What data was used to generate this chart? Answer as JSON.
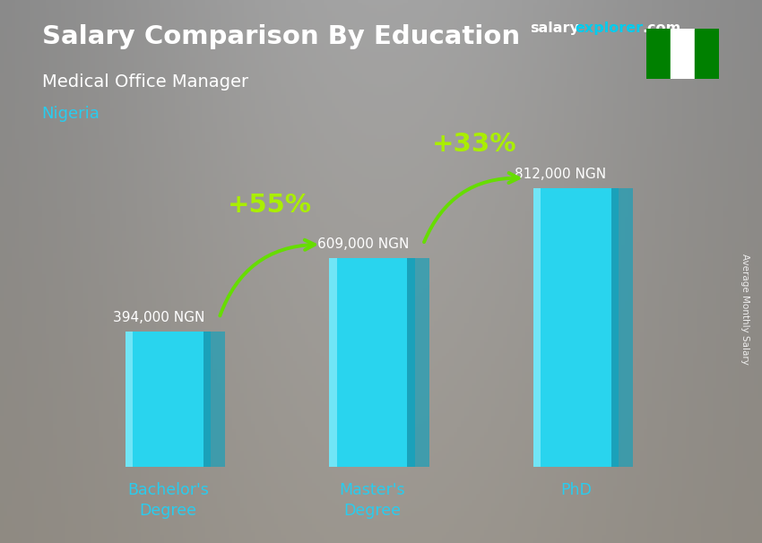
{
  "title": "Salary Comparison By Education",
  "subtitle": "Medical Office Manager",
  "country": "Nigeria",
  "watermark_salary": "salary",
  "watermark_explorer": "explorer",
  "watermark_com": ".com",
  "ylabel": "Average Monthly Salary",
  "categories": [
    "Bachelor's\nDegree",
    "Master's\nDegree",
    "PhD"
  ],
  "values": [
    394000,
    609000,
    812000
  ],
  "value_labels": [
    "394,000 NGN",
    "609,000 NGN",
    "812,000 NGN"
  ],
  "pct_labels": [
    "+55%",
    "+33%"
  ],
  "bar_face_color": "#29d4ee",
  "bar_left_color": "#7ae8f8",
  "bar_right_color": "#1a9fb8",
  "bar_top_color": "#55dff0",
  "title_color": "#ffffff",
  "subtitle_color": "#ffffff",
  "country_color": "#29ccee",
  "xtick_color": "#29ccee",
  "value_label_color": "#ffffff",
  "pct_color": "#aaee00",
  "arrow_color": "#66dd00",
  "bg_colors": [
    "#6a6a6a",
    "#7a7a7a",
    "#8a8888",
    "#7a7878",
    "#6a6868"
  ],
  "flag_green": "#008000",
  "flag_white": "#ffffff",
  "fig_width": 8.5,
  "fig_height": 6.06,
  "bar_width": 0.42,
  "bar_positions": [
    0,
    1,
    2
  ],
  "ylim_max": 950000,
  "xlim_min": -0.6,
  "xlim_max": 2.65
}
